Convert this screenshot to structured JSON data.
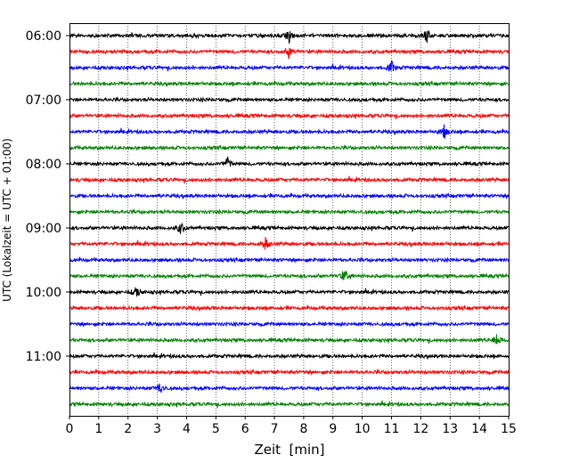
{
  "chart_data": {
    "type": "line",
    "chart_kind": "helicorder",
    "xlabel": "Zeit  [min]",
    "ylabel": "UTC (Lokalzeit = UTC + 01:00)",
    "xlim": [
      0,
      15
    ],
    "x_ticks": [
      "0",
      "1",
      "2",
      "3",
      "4",
      "5",
      "6",
      "7",
      "8",
      "9",
      "10",
      "11",
      "12",
      "13",
      "14",
      "15"
    ],
    "y_ticks": [
      "06:00",
      "07:00",
      "08:00",
      "09:00",
      "10:00",
      "11:00"
    ],
    "traces_per_hour": 4,
    "trace_colors": [
      "#000000",
      "#ff0000",
      "#0000ff",
      "#008000"
    ],
    "vertical_grid": true,
    "grid_style": "dotted",
    "row_start_times": [
      "06:00",
      "06:15",
      "06:30",
      "06:45",
      "07:00",
      "07:15",
      "07:30",
      "07:45",
      "08:00",
      "08:15",
      "08:30",
      "08:45",
      "09:00",
      "09:15",
      "09:30",
      "09:45",
      "10:00",
      "10:15",
      "10:30",
      "10:45",
      "11:00",
      "11:15",
      "11:30",
      "11:45"
    ],
    "notable_events": [
      {
        "row_start": "06:00",
        "minute": 7.5
      },
      {
        "row_start": "06:00",
        "minute": 12.2
      },
      {
        "row_start": "06:15",
        "minute": 7.5
      },
      {
        "row_start": "06:30",
        "minute": 11.0
      },
      {
        "row_start": "07:30",
        "minute": 12.8
      },
      {
        "row_start": "08:00",
        "minute": 5.4
      },
      {
        "row_start": "09:00",
        "minute": 3.8
      },
      {
        "row_start": "09:15",
        "minute": 6.7
      },
      {
        "row_start": "09:45",
        "minute": 9.4
      },
      {
        "row_start": "10:00",
        "minute": 2.3
      },
      {
        "row_start": "10:45",
        "minute": 14.6
      },
      {
        "row_start": "11:30",
        "minute": 3.1
      }
    ]
  }
}
